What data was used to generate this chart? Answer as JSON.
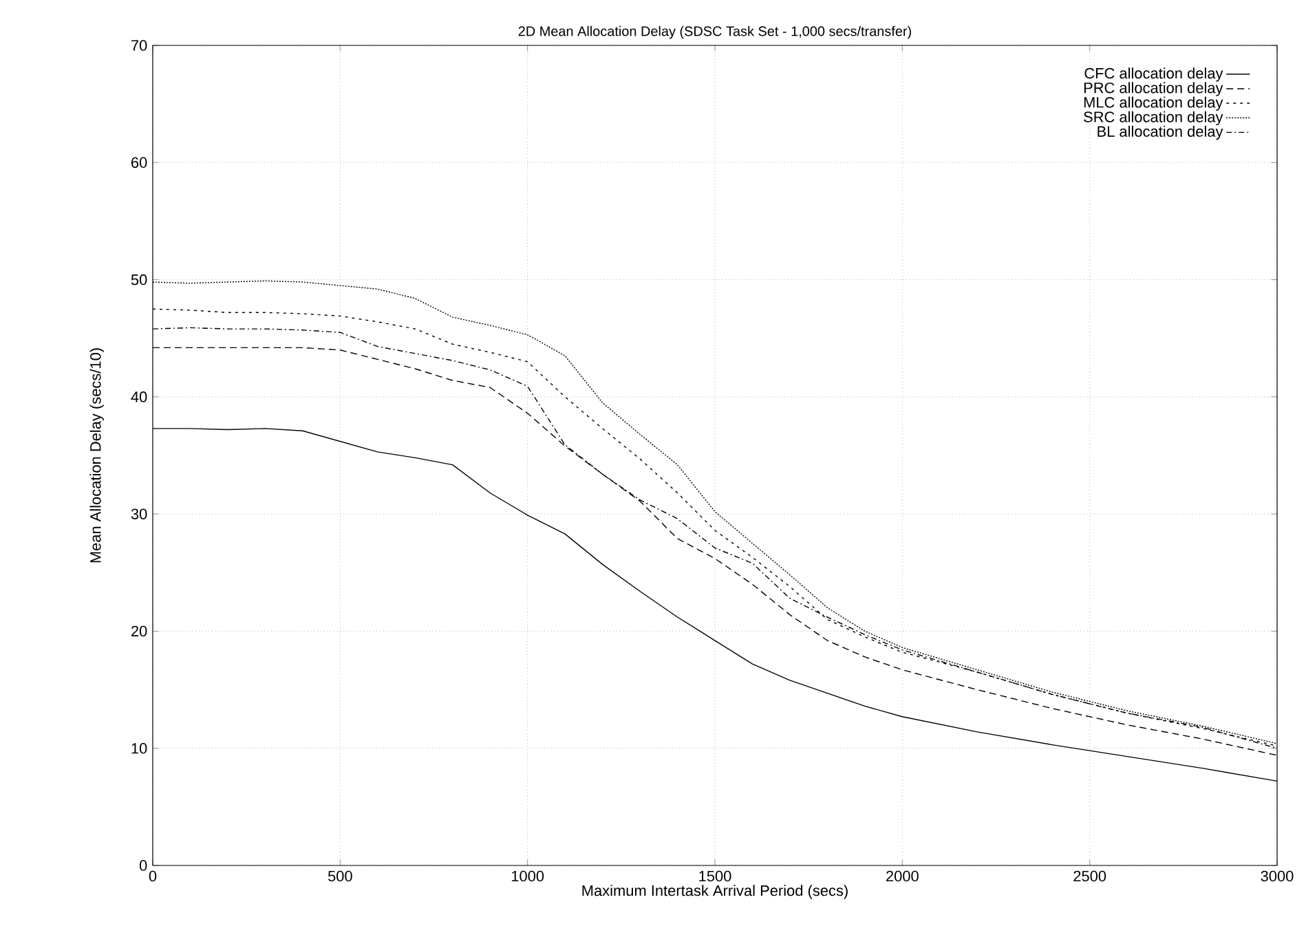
{
  "chart_data": {
    "type": "line",
    "title": "2D Mean Allocation Delay (SDSC Task Set - 1,000 secs/transfer)",
    "xlabel": "Maximum Intertask Arrival Period (secs)",
    "ylabel": "Mean Allocation Delay (secs/10)",
    "x": [
      0,
      100,
      200,
      300,
      400,
      500,
      600,
      700,
      800,
      900,
      1000,
      1100,
      1200,
      1300,
      1400,
      1500,
      1600,
      1700,
      1800,
      1900,
      2000,
      2200,
      2400,
      2600,
      2800,
      3000
    ],
    "series": [
      {
        "name": "CFC allocation delay",
        "color": "#000000",
        "line_style": "solid",
        "values": [
          37.3,
          37.3,
          37.2,
          37.3,
          37.1,
          36.2,
          35.3,
          34.8,
          34.2,
          31.8,
          29.9,
          28.3,
          25.7,
          23.4,
          21.2,
          19.2,
          17.2,
          15.8,
          14.7,
          13.6,
          12.7,
          11.4,
          10.3,
          9.3,
          8.3,
          7.2
        ]
      },
      {
        "name": "PRC allocation delay",
        "color": "#000000",
        "line_style": "dashed",
        "values": [
          44.2,
          44.2,
          44.2,
          44.2,
          44.2,
          44.0,
          43.2,
          42.4,
          41.4,
          40.8,
          38.6,
          35.8,
          33.4,
          31.1,
          27.9,
          26.2,
          24.0,
          21.4,
          19.2,
          17.8,
          16.7,
          15.0,
          13.4,
          12.0,
          10.8,
          9.4
        ]
      },
      {
        "name": "MLC allocation delay",
        "color": "#000000",
        "line_style": "dotted",
        "values": [
          47.5,
          47.4,
          47.2,
          47.2,
          47.1,
          46.9,
          46.4,
          45.8,
          44.5,
          43.8,
          43.0,
          40.0,
          37.3,
          34.7,
          31.8,
          28.6,
          26.3,
          23.8,
          21.0,
          19.5,
          18.2,
          16.5,
          14.6,
          13.0,
          11.7,
          10.2
        ]
      },
      {
        "name": "SRC allocation delay",
        "color": "#000000",
        "line_style": "densely dotted",
        "values": [
          49.8,
          49.7,
          49.8,
          49.9,
          49.8,
          49.5,
          49.2,
          48.4,
          46.8,
          46.1,
          45.3,
          43.5,
          39.5,
          36.8,
          34.2,
          30.2,
          27.5,
          24.8,
          22.0,
          20.0,
          18.6,
          16.7,
          14.8,
          13.2,
          11.9,
          10.4
        ]
      },
      {
        "name": "BL allocation delay",
        "color": "#000000",
        "line_style": "dashdot",
        "values": [
          45.8,
          45.9,
          45.8,
          45.8,
          45.7,
          45.5,
          44.3,
          43.7,
          43.1,
          42.3,
          40.9,
          35.9,
          33.4,
          31.2,
          29.6,
          27.1,
          25.8,
          22.8,
          21.2,
          19.7,
          18.4,
          16.5,
          14.6,
          13.0,
          11.8,
          10.0
        ]
      }
    ],
    "xlim": [
      0,
      3000
    ],
    "ylim": [
      0,
      70
    ],
    "xticks": [
      0,
      500,
      1000,
      1500,
      2000,
      2500,
      3000
    ],
    "yticks": [
      0,
      10,
      20,
      30,
      40,
      50,
      60,
      70
    ],
    "grid": true,
    "legend": "top right"
  }
}
